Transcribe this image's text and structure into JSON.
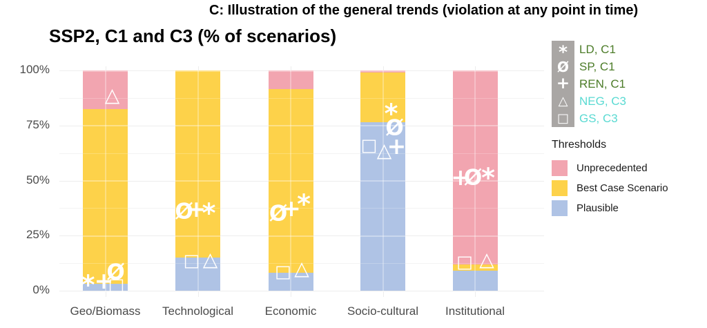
{
  "figure_title": "C: Illustration of the general trends (violation at any point in time)",
  "chart_title": "SSP2, C1 and C3 (% of scenarios)",
  "chart_data": {
    "type": "bar",
    "stacked": true,
    "title": "SSP2, C1 and C3 (% of scenarios)",
    "xlabel": "",
    "ylabel": "",
    "ylim": [
      0,
      100
    ],
    "grid": true,
    "categories": [
      "Geo/Biomass",
      "Technological",
      "Economic",
      "Socio-cultural",
      "Institutional"
    ],
    "series": [
      {
        "name": "Plausible",
        "color": "#AFC3E5",
        "values": [
          3,
          15,
          8,
          76.5,
          9
        ]
      },
      {
        "name": "Best Case Scenario",
        "color": "#FDD24A",
        "values": [
          79.5,
          85,
          83.5,
          22.5,
          3
        ]
      },
      {
        "name": "Unprecedented",
        "color": "#F2A5B0",
        "values": [
          17.5,
          0,
          8.5,
          1,
          88
        ]
      }
    ],
    "yticks": [
      {
        "label": "0%",
        "value": 0
      },
      {
        "label": "25%",
        "value": 25
      },
      {
        "label": "50%",
        "value": 50
      },
      {
        "label": "75%",
        "value": 75
      },
      {
        "label": "100%",
        "value": 100
      }
    ],
    "minor_gridlines": [
      12.5,
      37.5,
      62.5,
      87.5
    ],
    "markers": [
      {
        "scenario": "LD, C1",
        "glyph": "*",
        "points": [
          {
            "category": "Geo/Biomass",
            "value": 4.5,
            "dx": -25
          },
          {
            "category": "Technological",
            "value": 37,
            "dx": 16
          },
          {
            "category": "Economic",
            "value": 41,
            "dx": 19
          },
          {
            "category": "Socio-cultural",
            "value": 82,
            "dx": 12
          },
          {
            "category": "Institutional",
            "value": 53,
            "dx": 19
          }
        ]
      },
      {
        "scenario": "SP, C1",
        "glyph": "Ø",
        "points": [
          {
            "category": "Geo/Biomass",
            "value": 8.5,
            "dx": 15
          },
          {
            "category": "Technological",
            "value": 36,
            "dx": -20
          },
          {
            "category": "Economic",
            "value": 35,
            "dx": -18
          },
          {
            "category": "Socio-cultural",
            "value": 74,
            "dx": 17
          },
          {
            "category": "Institutional",
            "value": 51.5,
            "dx": -3
          }
        ]
      },
      {
        "scenario": "REN, C1",
        "glyph": "+",
        "points": [
          {
            "category": "Geo/Biomass",
            "value": 5,
            "dx": -2
          },
          {
            "category": "Technological",
            "value": 37.5,
            "dx": -2
          },
          {
            "category": "Economic",
            "value": 38,
            "dx": 1
          },
          {
            "category": "Socio-cultural",
            "value": 66,
            "dx": 20
          },
          {
            "category": "Institutional",
            "value": 52,
            "dx": -21
          }
        ]
      },
      {
        "scenario": "NEG, C3",
        "glyph": "△",
        "points": [
          {
            "category": "Geo/Biomass",
            "value": 89,
            "dx": 10
          },
          {
            "category": "Technological",
            "value": 14.5,
            "dx": 18
          },
          {
            "category": "Economic",
            "value": 10.5,
            "dx": 16
          },
          {
            "category": "Socio-cultural",
            "value": 64,
            "dx": 2
          },
          {
            "category": "Institutional",
            "value": 14.5,
            "dx": 17
          }
        ]
      },
      {
        "scenario": "GS, C3",
        "glyph": "□",
        "points": [
          {
            "category": "Geo/Biomass",
            "value": 3,
            "dx": 16
          },
          {
            "category": "Technological",
            "value": 14,
            "dx": -9
          },
          {
            "category": "Economic",
            "value": 9,
            "dx": -11
          },
          {
            "category": "Socio-cultural",
            "value": 66.5,
            "dx": -20
          },
          {
            "category": "Institutional",
            "value": 13.5,
            "dx": -15
          }
        ]
      }
    ]
  },
  "scenario_legend": {
    "strip_color": "#A9A6A4",
    "glyph_color": "#FFFFFF",
    "items": [
      {
        "glyph": "*",
        "label": "LD, C1",
        "color": "#4C7C28"
      },
      {
        "glyph": "Ø",
        "label": "SP, C1",
        "color": "#4C7C28"
      },
      {
        "glyph": "+",
        "label": "REN, C1",
        "color": "#4C7C28"
      },
      {
        "glyph": "△",
        "label": "NEG, C3",
        "color": "#59DAD2"
      },
      {
        "glyph": "□",
        "label": "GS, C3",
        "color": "#59DAD2"
      }
    ]
  },
  "thresholds_legend": {
    "title": "Thresholds",
    "items": [
      {
        "label": "Unprecedented",
        "color": "#F2A5B0"
      },
      {
        "label": "Best Case Scenario",
        "color": "#FDD24A"
      },
      {
        "label": "Plausible",
        "color": "#AFC3E5"
      }
    ]
  }
}
